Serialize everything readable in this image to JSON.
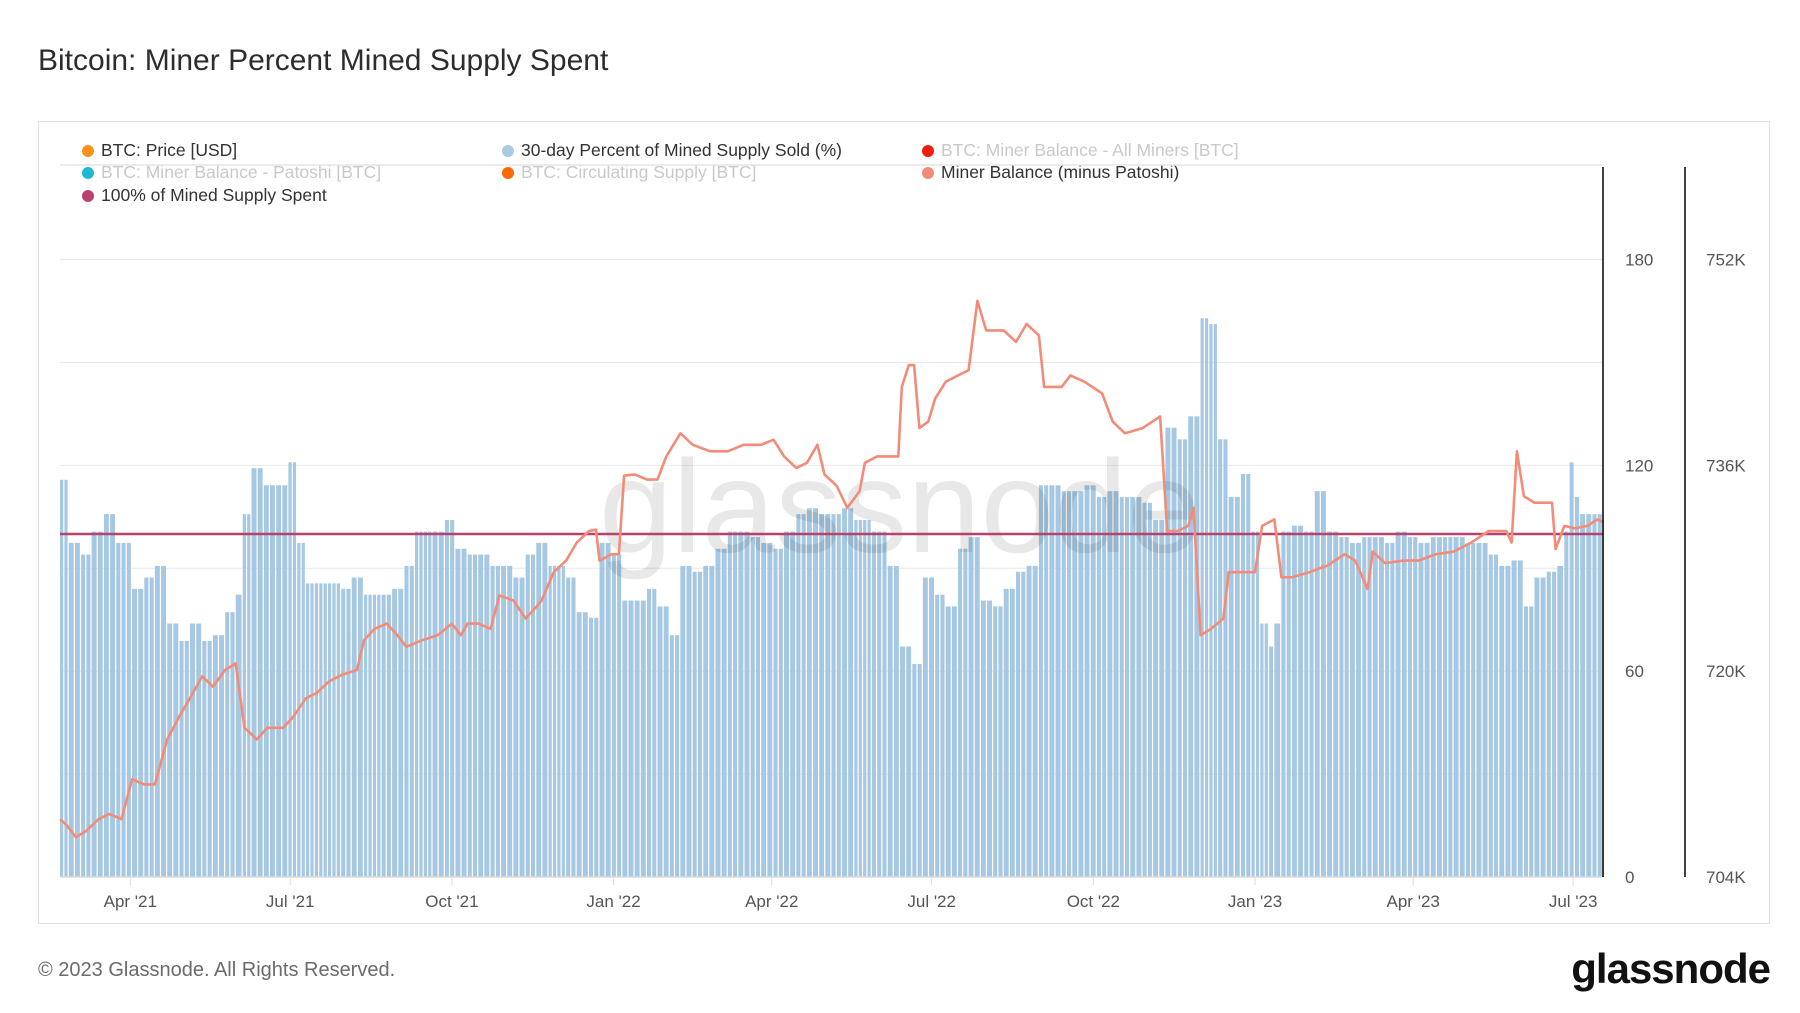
{
  "title": "Bitcoin: Miner Percent Mined Supply Spent",
  "legend": [
    {
      "label": "BTC: Price [USD]",
      "color": "#f7931a",
      "active": true
    },
    {
      "label": "30-day Percent of Mined Supply Sold (%)",
      "color": "#a6cbe3",
      "active": true
    },
    {
      "label": "BTC: Miner Balance - All Miners [BTC]",
      "color": "#f21d0a",
      "active": false
    },
    {
      "label": "BTC: Miner Balance - Patoshi [BTC]",
      "color": "#1eb7d6",
      "active": false
    },
    {
      "label": "BTC: Circulating Supply [BTC]",
      "color": "#ff6a00",
      "active": false
    },
    {
      "label": "Miner Balance (minus Patoshi)",
      "color": "#f28c78",
      "active": true
    },
    {
      "label": "100% of Mined Supply Spent",
      "color": "#b8416f",
      "active": true
    }
  ],
  "footer": "© 2023 Glassnode. All Rights Reserved.",
  "logo_text": "glassnode",
  "watermark": "glassnode",
  "chart_data": {
    "type": "bar+line",
    "title": "Bitcoin: Miner Percent Mined Supply Spent",
    "x_unit": "days since start_date",
    "start_date": "2021-02-20",
    "xlim": [
      0,
      878
    ],
    "x_ticks": [
      {
        "day": 40,
        "label": "Apr '21"
      },
      {
        "day": 131,
        "label": "Jul '21"
      },
      {
        "day": 223,
        "label": "Oct '21"
      },
      {
        "day": 315,
        "label": "Jan '22"
      },
      {
        "day": 405,
        "label": "Apr '22"
      },
      {
        "day": 496,
        "label": "Jul '22"
      },
      {
        "day": 588,
        "label": "Oct '22"
      },
      {
        "day": 680,
        "label": "Jan '23"
      },
      {
        "day": 770,
        "label": "Apr '23"
      },
      {
        "day": 861,
        "label": "Jul '23"
      }
    ],
    "y_left": {
      "ylim": [
        0,
        207
      ],
      "ticks": [
        0,
        60,
        120,
        180
      ],
      "tick_labels": [
        "0",
        "60",
        "120",
        "180"
      ],
      "grid_step": 30
    },
    "y_right": {
      "ylim": [
        704,
        759.2
      ],
      "unit": "K BTC",
      "ticks": [
        704,
        720,
        736,
        752
      ],
      "tick_labels": [
        "704K",
        "720K",
        "736K",
        "752K"
      ]
    },
    "grid": true,
    "legend_placement": "top-left",
    "reference_line": {
      "name": "100% of Mined Supply Spent",
      "value": 100,
      "axis": "left",
      "color": "#b8416f"
    },
    "series": [
      {
        "name": "30-day Percent of Mined Supply Sold (%)",
        "type": "bar",
        "axis": "left",
        "color": "#a6c8e2",
        "points": [
          [
            0,
            115.8
          ],
          [
            5,
            97.4
          ],
          [
            12,
            94.0
          ],
          [
            18,
            100.7
          ],
          [
            25,
            105.8
          ],
          [
            32,
            97.4
          ],
          [
            38,
            97.4
          ],
          [
            41,
            84.0
          ],
          [
            48,
            87.3
          ],
          [
            54,
            90.7
          ],
          [
            61,
            73.9
          ],
          [
            68,
            68.8
          ],
          [
            74,
            73.9
          ],
          [
            81,
            68.8
          ],
          [
            87,
            70.5
          ],
          [
            94,
            77.2
          ],
          [
            100,
            82.3
          ],
          [
            104,
            105.8
          ],
          [
            109,
            119.2
          ],
          [
            116,
            114.2
          ],
          [
            123,
            114.2
          ],
          [
            130,
            120.9
          ],
          [
            135,
            97.4
          ],
          [
            140,
            85.6
          ],
          [
            150,
            85.6
          ],
          [
            160,
            84.0
          ],
          [
            166,
            87.3
          ],
          [
            173,
            82.3
          ],
          [
            183,
            82.3
          ],
          [
            189,
            84.0
          ],
          [
            196,
            90.7
          ],
          [
            202,
            100.7
          ],
          [
            212,
            100.7
          ],
          [
            219,
            104.1
          ],
          [
            225,
            95.7
          ],
          [
            232,
            94.0
          ],
          [
            238,
            94.0
          ],
          [
            245,
            90.7
          ],
          [
            251,
            90.7
          ],
          [
            258,
            87.3
          ],
          [
            265,
            94.0
          ],
          [
            271,
            97.4
          ],
          [
            278,
            90.7
          ],
          [
            288,
            87.3
          ],
          [
            294,
            77.2
          ],
          [
            301,
            75.6
          ],
          [
            307,
            97.4
          ],
          [
            314,
            94.0
          ],
          [
            320,
            80.6
          ],
          [
            327,
            80.6
          ],
          [
            334,
            84.0
          ],
          [
            340,
            78.9
          ],
          [
            347,
            70.5
          ],
          [
            353,
            90.7
          ],
          [
            360,
            89.0
          ],
          [
            366,
            90.7
          ],
          [
            373,
            95.7
          ],
          [
            380,
            100.7
          ],
          [
            386,
            100.7
          ],
          [
            393,
            99.1
          ],
          [
            399,
            97.4
          ],
          [
            406,
            95.7
          ],
          [
            412,
            100.7
          ],
          [
            419,
            105.8
          ],
          [
            425,
            107.5
          ],
          [
            432,
            105.8
          ],
          [
            439,
            105.8
          ],
          [
            445,
            107.5
          ],
          [
            452,
            104.1
          ],
          [
            462,
            100.7
          ],
          [
            471,
            90.7
          ],
          [
            478,
            67.2
          ],
          [
            485,
            62.1
          ],
          [
            491,
            87.3
          ],
          [
            498,
            82.3
          ],
          [
            504,
            78.9
          ],
          [
            511,
            95.7
          ],
          [
            517,
            99.1
          ],
          [
            524,
            80.6
          ],
          [
            531,
            78.9
          ],
          [
            537,
            84.0
          ],
          [
            544,
            89.0
          ],
          [
            550,
            90.7
          ],
          [
            557,
            114.2
          ],
          [
            563,
            114.2
          ],
          [
            570,
            112.5
          ],
          [
            576,
            112.5
          ],
          [
            583,
            114.2
          ],
          [
            590,
            110.8
          ],
          [
            596,
            112.5
          ],
          [
            603,
            110.8
          ],
          [
            609,
            110.8
          ],
          [
            616,
            109.1
          ],
          [
            622,
            104.1
          ],
          [
            629,
            131.0
          ],
          [
            636,
            127.6
          ],
          [
            642,
            134.3
          ],
          [
            649,
            162.9
          ],
          [
            654,
            161.2
          ],
          [
            659,
            127.6
          ],
          [
            665,
            110.8
          ],
          [
            672,
            117.5
          ],
          [
            678,
            100.7
          ],
          [
            683,
            73.9
          ],
          [
            688,
            67.2
          ],
          [
            691,
            73.9
          ],
          [
            695,
            100.7
          ],
          [
            701,
            102.4
          ],
          [
            708,
            100.7
          ],
          [
            714,
            112.5
          ],
          [
            721,
            100.7
          ],
          [
            728,
            99.1
          ],
          [
            734,
            97.4
          ],
          [
            741,
            99.1
          ],
          [
            747,
            99.1
          ],
          [
            754,
            97.4
          ],
          [
            760,
            100.7
          ],
          [
            767,
            99.1
          ],
          [
            773,
            97.4
          ],
          [
            780,
            99.1
          ],
          [
            787,
            99.1
          ],
          [
            793,
            99.1
          ],
          [
            800,
            97.4
          ],
          [
            806,
            97.4
          ],
          [
            813,
            94.0
          ],
          [
            819,
            90.7
          ],
          [
            826,
            92.3
          ],
          [
            833,
            78.9
          ],
          [
            839,
            87.3
          ],
          [
            846,
            89.0
          ],
          [
            852,
            90.7
          ],
          [
            856,
            100.7
          ],
          [
            859,
            120.9
          ],
          [
            862,
            110.8
          ],
          [
            865,
            105.8
          ],
          [
            872,
            105.8
          ],
          [
            878,
            104.1
          ]
        ]
      },
      {
        "name": "Miner Balance (minus Patoshi)",
        "type": "line",
        "axis": "right",
        "unit": "K BTC",
        "color": "#f28c78",
        "points": [
          [
            0,
            708.5
          ],
          [
            4,
            708.0
          ],
          [
            9,
            707.1
          ],
          [
            15,
            707.6
          ],
          [
            22,
            708.5
          ],
          [
            28,
            708.9
          ],
          [
            35,
            708.5
          ],
          [
            41,
            711.6
          ],
          [
            48,
            711.2
          ],
          [
            54,
            711.2
          ],
          [
            61,
            714.7
          ],
          [
            68,
            716.5
          ],
          [
            74,
            717.9
          ],
          [
            81,
            719.6
          ],
          [
            87,
            718.8
          ],
          [
            94,
            720.1
          ],
          [
            100,
            720.6
          ],
          [
            105,
            715.6
          ],
          [
            112,
            714.7
          ],
          [
            118,
            715.6
          ],
          [
            127,
            715.6
          ],
          [
            133,
            716.5
          ],
          [
            140,
            717.9
          ],
          [
            146,
            718.3
          ],
          [
            153,
            719.2
          ],
          [
            160,
            719.7
          ],
          [
            169,
            720.1
          ],
          [
            173,
            722.4
          ],
          [
            179,
            723.3
          ],
          [
            186,
            723.7
          ],
          [
            192,
            722.8
          ],
          [
            197,
            721.9
          ],
          [
            206,
            722.4
          ],
          [
            215,
            722.8
          ],
          [
            223,
            723.7
          ],
          [
            228,
            722.8
          ],
          [
            232,
            723.7
          ],
          [
            238,
            723.7
          ],
          [
            245,
            723.3
          ],
          [
            250,
            725.9
          ],
          [
            258,
            725.5
          ],
          [
            265,
            724.1
          ],
          [
            271,
            725.0
          ],
          [
            274,
            725.5
          ],
          [
            281,
            727.7
          ],
          [
            288,
            728.6
          ],
          [
            294,
            730.0
          ],
          [
            301,
            730.9
          ],
          [
            305,
            731.0
          ],
          [
            307,
            728.6
          ],
          [
            314,
            729.1
          ],
          [
            318,
            729.1
          ],
          [
            321,
            735.2
          ],
          [
            327,
            735.3
          ],
          [
            334,
            734.9
          ],
          [
            340,
            734.9
          ],
          [
            345,
            736.7
          ],
          [
            353,
            738.5
          ],
          [
            360,
            737.6
          ],
          [
            370,
            737.1
          ],
          [
            380,
            737.1
          ],
          [
            389,
            737.6
          ],
          [
            399,
            737.6
          ],
          [
            406,
            738.0
          ],
          [
            412,
            736.7
          ],
          [
            419,
            735.8
          ],
          [
            425,
            736.2
          ],
          [
            431,
            737.6
          ],
          [
            435,
            735.3
          ],
          [
            442,
            734.4
          ],
          [
            448,
            732.7
          ],
          [
            455,
            734.0
          ],
          [
            458,
            736.2
          ],
          [
            465,
            736.7
          ],
          [
            477,
            736.7
          ],
          [
            479,
            742.1
          ],
          [
            483,
            743.8
          ],
          [
            486,
            743.8
          ],
          [
            489,
            738.9
          ],
          [
            494,
            739.4
          ],
          [
            498,
            741.2
          ],
          [
            504,
            742.5
          ],
          [
            511,
            743.0
          ],
          [
            517,
            743.4
          ],
          [
            522,
            748.8
          ],
          [
            527,
            746.5
          ],
          [
            537,
            746.5
          ],
          [
            544,
            745.6
          ],
          [
            550,
            747.0
          ],
          [
            557,
            746.1
          ],
          [
            560,
            742.1
          ],
          [
            570,
            742.1
          ],
          [
            575,
            743.0
          ],
          [
            583,
            742.5
          ],
          [
            593,
            741.6
          ],
          [
            599,
            739.4
          ],
          [
            606,
            738.5
          ],
          [
            616,
            738.9
          ],
          [
            626,
            739.8
          ],
          [
            630,
            730.9
          ],
          [
            636,
            730.9
          ],
          [
            642,
            731.3
          ],
          [
            645,
            732.7
          ],
          [
            649,
            722.8
          ],
          [
            655,
            723.3
          ],
          [
            662,
            724.1
          ],
          [
            665,
            727.7
          ],
          [
            672,
            727.7
          ],
          [
            680,
            727.7
          ],
          [
            684,
            731.3
          ],
          [
            691,
            731.8
          ],
          [
            695,
            727.3
          ],
          [
            701,
            727.3
          ],
          [
            711,
            727.7
          ],
          [
            721,
            728.2
          ],
          [
            731,
            729.1
          ],
          [
            737,
            728.6
          ],
          [
            744,
            726.4
          ],
          [
            747,
            729.3
          ],
          [
            754,
            728.4
          ],
          [
            764,
            728.6
          ],
          [
            773,
            728.6
          ],
          [
            783,
            729.1
          ],
          [
            793,
            729.3
          ],
          [
            803,
            730.0
          ],
          [
            813,
            730.9
          ],
          [
            823,
            730.9
          ],
          [
            826,
            730.0
          ],
          [
            829,
            737.1
          ],
          [
            833,
            733.6
          ],
          [
            839,
            733.1
          ],
          [
            849,
            733.1
          ],
          [
            851,
            729.5
          ],
          [
            856,
            731.3
          ],
          [
            862,
            731.1
          ],
          [
            869,
            731.3
          ],
          [
            875,
            731.8
          ],
          [
            878,
            731.6
          ]
        ]
      }
    ]
  }
}
